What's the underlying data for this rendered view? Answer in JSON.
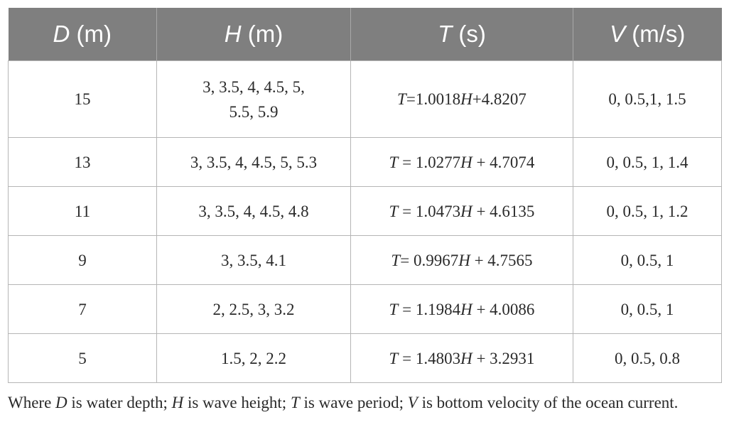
{
  "table": {
    "headers": [
      {
        "symbol": "D",
        "unit": " (m)"
      },
      {
        "symbol": "H",
        "unit": " (m)"
      },
      {
        "symbol": "T",
        "unit": " (s)"
      },
      {
        "symbol": "V",
        "unit": " (m/s)"
      }
    ],
    "rows": [
      {
        "d": "15",
        "h_line1": "3, 3.5, 4, 4.5, 5,",
        "h_line2": "5.5, 5.9",
        "t_pre": "T",
        "t_mid": "=1.0018",
        "t_var": "H",
        "t_post": "+4.8207",
        "v": "0, 0.5,1, 1.5"
      },
      {
        "d": "13",
        "h": "3, 3.5, 4, 4.5, 5, 5.3",
        "t_pre": "T",
        "t_mid": " = 1.0277",
        "t_var": "H",
        "t_post": " + 4.7074",
        "v": "0, 0.5, 1, 1.4"
      },
      {
        "d": "11",
        "h": "3, 3.5, 4, 4.5, 4.8",
        "t_pre": "T",
        "t_mid": " = 1.0473",
        "t_var": "H",
        "t_post": " + 4.6135",
        "v": "0, 0.5, 1, 1.2"
      },
      {
        "d": "9",
        "h": "3, 3.5, 4.1",
        "t_pre": "T",
        "t_mid": "= 0.9967",
        "t_var": "H",
        "t_post": " + 4.7565",
        "v": "0, 0.5, 1"
      },
      {
        "d": "7",
        "h": "2, 2.5, 3, 3.2",
        "t_pre": "T",
        "t_mid": " = 1.1984",
        "t_var": "H",
        "t_post": " + 4.0086",
        "v": "0, 0.5, 1"
      },
      {
        "d": "5",
        "h": "1.5, 2, 2.2",
        "t_pre": "T",
        "t_mid": " = 1.4803",
        "t_var": "H",
        "t_post": " + 3.2931",
        "v": "0, 0.5, 0.8"
      }
    ]
  },
  "caption": {
    "p1": "Where ",
    "v1": "D",
    "p2": " is water depth; ",
    "v2": "H",
    "p3": " is wave height; ",
    "v3": "T",
    "p4": " is wave period; ",
    "v4": "V",
    "p5": " is bottom velocity of the ocean current."
  },
  "colors": {
    "header_background": "#7f7f7f",
    "header_text": "#ffffff",
    "grid_lines": "#b5b5b5"
  }
}
